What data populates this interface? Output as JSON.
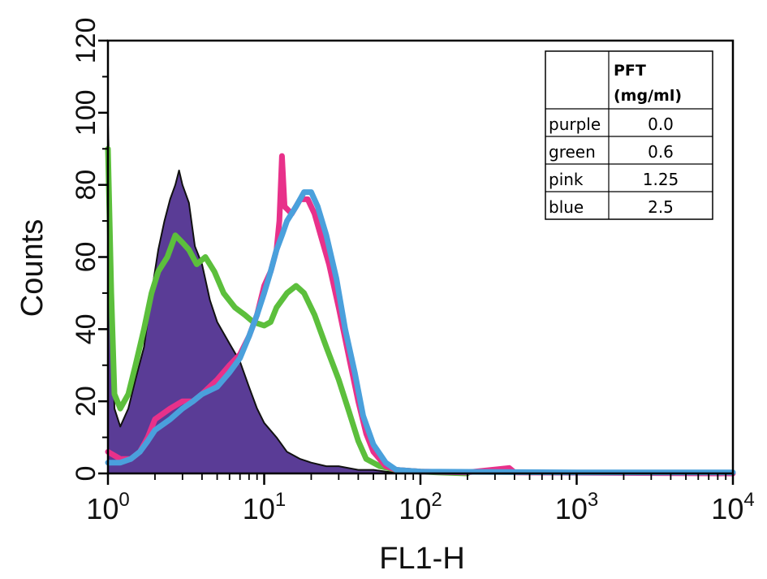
{
  "chart_data": {
    "type": "histogram",
    "xlabel": "FL1-H",
    "ylabel": "Counts",
    "xscale": "log",
    "xlim": [
      1,
      10000
    ],
    "ylim": [
      0,
      120
    ],
    "x_ticks": [
      {
        "base": "10",
        "exp": "0"
      },
      {
        "base": "10",
        "exp": "1"
      },
      {
        "base": "10",
        "exp": "2"
      },
      {
        "base": "10",
        "exp": "3"
      },
      {
        "base": "10",
        "exp": "4"
      }
    ],
    "y_ticks": [
      "0",
      "20",
      "40",
      "60",
      "80",
      "100",
      "120"
    ],
    "colors": {
      "purple_fill": "#5a3c96",
      "purple_edge": "#111111",
      "green": "#5cbf3c",
      "pink": "#e8318a",
      "blue": "#4aa0dc"
    },
    "series": [
      {
        "name": "purple",
        "style": "filled",
        "points": [
          [
            1.0,
            97
          ],
          [
            1.05,
            62
          ],
          [
            1.1,
            18
          ],
          [
            1.2,
            13
          ],
          [
            1.35,
            18
          ],
          [
            1.5,
            26
          ],
          [
            1.7,
            35
          ],
          [
            1.9,
            50
          ],
          [
            2.1,
            62
          ],
          [
            2.3,
            70
          ],
          [
            2.5,
            76
          ],
          [
            2.7,
            80
          ],
          [
            2.85,
            84
          ],
          [
            3.0,
            80
          ],
          [
            3.3,
            75
          ],
          [
            3.6,
            63
          ],
          [
            4.0,
            58
          ],
          [
            4.5,
            48
          ],
          [
            5.0,
            42
          ],
          [
            6.0,
            36
          ],
          [
            7.0,
            31
          ],
          [
            8.0,
            24
          ],
          [
            9.0,
            18
          ],
          [
            10.0,
            14
          ],
          [
            12.0,
            10
          ],
          [
            14.0,
            6
          ],
          [
            17.0,
            4
          ],
          [
            20.0,
            3
          ],
          [
            25.0,
            2
          ],
          [
            30.0,
            2
          ],
          [
            40.0,
            1
          ],
          [
            50.0,
            1
          ],
          [
            60.0,
            0.5
          ],
          [
            80.0,
            0
          ]
        ]
      },
      {
        "name": "green",
        "style": "line",
        "points": [
          [
            1.0,
            90
          ],
          [
            1.05,
            50
          ],
          [
            1.1,
            22
          ],
          [
            1.2,
            18
          ],
          [
            1.35,
            22
          ],
          [
            1.5,
            30
          ],
          [
            1.7,
            40
          ],
          [
            1.9,
            50
          ],
          [
            2.1,
            56
          ],
          [
            2.4,
            60
          ],
          [
            2.7,
            66
          ],
          [
            3.0,
            64
          ],
          [
            3.3,
            62
          ],
          [
            3.7,
            58
          ],
          [
            4.2,
            60
          ],
          [
            4.8,
            56
          ],
          [
            5.5,
            50
          ],
          [
            6.5,
            46
          ],
          [
            7.5,
            44
          ],
          [
            8.5,
            42
          ],
          [
            10.0,
            41
          ],
          [
            11.0,
            42
          ],
          [
            12.0,
            46
          ],
          [
            14.0,
            50
          ],
          [
            16.0,
            52
          ],
          [
            18.0,
            50
          ],
          [
            21.0,
            44
          ],
          [
            25.0,
            35
          ],
          [
            30.0,
            26
          ],
          [
            35.0,
            17
          ],
          [
            40.0,
            9
          ],
          [
            45.0,
            4
          ],
          [
            55.0,
            2
          ],
          [
            70.0,
            1
          ],
          [
            100.0,
            0.5
          ],
          [
            130.0,
            0.3
          ],
          [
            200.0,
            0
          ]
        ]
      },
      {
        "name": "pink",
        "style": "line",
        "points": [
          [
            1.0,
            6
          ],
          [
            1.2,
            4
          ],
          [
            1.4,
            4
          ],
          [
            1.6,
            6
          ],
          [
            1.8,
            10
          ],
          [
            2.0,
            15
          ],
          [
            2.5,
            18
          ],
          [
            3.0,
            20
          ],
          [
            3.5,
            20
          ],
          [
            4.0,
            22
          ],
          [
            5.0,
            26
          ],
          [
            6.0,
            30
          ],
          [
            7.0,
            33
          ],
          [
            8.0,
            38
          ],
          [
            9.0,
            44
          ],
          [
            10.0,
            52
          ],
          [
            11.0,
            56
          ],
          [
            12.0,
            62
          ],
          [
            12.5,
            70
          ],
          [
            13.0,
            88
          ],
          [
            13.5,
            74
          ],
          [
            15.0,
            72
          ],
          [
            17.0,
            76
          ],
          [
            19.0,
            76
          ],
          [
            21.0,
            72
          ],
          [
            23.0,
            66
          ],
          [
            26.0,
            58
          ],
          [
            30.0,
            46
          ],
          [
            35.0,
            32
          ],
          [
            40.0,
            20
          ],
          [
            45.0,
            11
          ],
          [
            50.0,
            6
          ],
          [
            60.0,
            2
          ],
          [
            70.0,
            1
          ],
          [
            100.0,
            0.5
          ],
          [
            200.0,
            0.3
          ],
          [
            370.0,
            1.5
          ],
          [
            400.0,
            0.3
          ],
          [
            1000.0,
            0.2
          ],
          [
            10000.0,
            0
          ]
        ]
      },
      {
        "name": "blue",
        "style": "line",
        "points": [
          [
            1.0,
            3
          ],
          [
            1.2,
            3
          ],
          [
            1.4,
            4
          ],
          [
            1.6,
            6
          ],
          [
            1.8,
            9
          ],
          [
            2.0,
            12
          ],
          [
            2.5,
            15
          ],
          [
            3.0,
            18
          ],
          [
            3.5,
            20
          ],
          [
            4.0,
            22
          ],
          [
            5.0,
            24
          ],
          [
            6.0,
            28
          ],
          [
            7.0,
            32
          ],
          [
            8.0,
            38
          ],
          [
            9.0,
            44
          ],
          [
            10.0,
            50
          ],
          [
            11.0,
            56
          ],
          [
            12.0,
            62
          ],
          [
            13.0,
            66
          ],
          [
            14.0,
            70
          ],
          [
            16.0,
            74
          ],
          [
            18.0,
            78
          ],
          [
            20.0,
            78
          ],
          [
            22.0,
            74
          ],
          [
            25.0,
            66
          ],
          [
            29.0,
            54
          ],
          [
            33.0,
            40
          ],
          [
            38.0,
            28
          ],
          [
            43.0,
            16
          ],
          [
            50.0,
            8
          ],
          [
            60.0,
            3
          ],
          [
            70.0,
            1
          ],
          [
            100.0,
            0.5
          ],
          [
            1000.0,
            0.3
          ],
          [
            10000.0,
            0.3
          ]
        ]
      }
    ],
    "legend": {
      "position": "top-right",
      "header": [
        "PFT",
        "(mg/ml)"
      ],
      "rows": [
        {
          "label": "purple",
          "value": "0.0"
        },
        {
          "label": "green",
          "value": "0.6"
        },
        {
          "label": "pink",
          "value": "1.25"
        },
        {
          "label": "blue",
          "value": "2.5"
        }
      ]
    }
  }
}
